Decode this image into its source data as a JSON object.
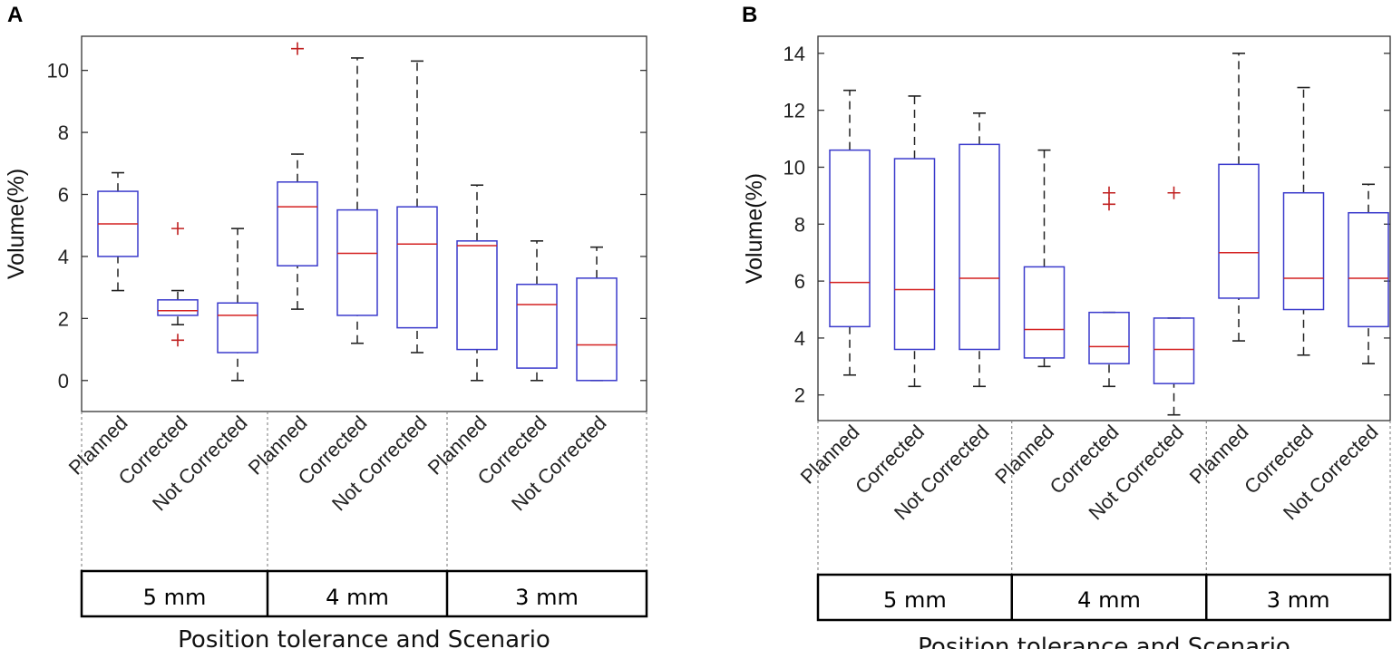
{
  "chart_data": [
    {
      "panel": "A",
      "type": "box",
      "ylabel": "Volume(%)",
      "xlabel": "Position tolerance and Scenario",
      "ylim": [
        -1,
        11.1
      ],
      "yticks": [
        0,
        2,
        4,
        6,
        8,
        10
      ],
      "groups": [
        "5 mm",
        "4 mm",
        "3 mm"
      ],
      "categories": [
        "Planned",
        "Corrected",
        "Not Corrected",
        "Planned",
        "Corrected",
        "Not Corrected",
        "Planned",
        "Corrected",
        "Not Corrected"
      ],
      "boxes": [
        {
          "min": 2.9,
          "q1": 4.0,
          "median": 5.05,
          "q3": 6.1,
          "max": 6.7,
          "outliers": []
        },
        {
          "min": 1.8,
          "q1": 2.1,
          "median": 2.25,
          "q3": 2.6,
          "max": 2.9,
          "outliers": [
            4.9,
            1.3
          ]
        },
        {
          "min": 0.0,
          "q1": 0.9,
          "median": 2.1,
          "q3": 2.5,
          "max": 4.9,
          "outliers": []
        },
        {
          "min": 2.3,
          "q1": 3.7,
          "median": 5.6,
          "q3": 6.4,
          "max": 7.3,
          "outliers": [
            10.7
          ]
        },
        {
          "min": 1.2,
          "q1": 2.1,
          "median": 4.1,
          "q3": 5.5,
          "max": 10.4,
          "outliers": []
        },
        {
          "min": 0.9,
          "q1": 1.7,
          "median": 4.4,
          "q3": 5.6,
          "max": 10.3,
          "outliers": []
        },
        {
          "min": 0.0,
          "q1": 1.0,
          "median": 4.35,
          "q3": 4.5,
          "max": 6.3,
          "outliers": []
        },
        {
          "min": 0.0,
          "q1": 0.4,
          "median": 2.45,
          "q3": 3.1,
          "max": 4.5,
          "outliers": []
        },
        {
          "min": 0.0,
          "q1": 0.0,
          "median": 1.15,
          "q3": 3.3,
          "max": 4.3,
          "outliers": []
        }
      ]
    },
    {
      "panel": "B",
      "type": "box",
      "ylabel": "Volume(%)",
      "xlabel": "Position tolerance and Scenario",
      "ylim": [
        1.1,
        14.6
      ],
      "yticks": [
        2,
        4,
        6,
        8,
        10,
        12,
        14
      ],
      "groups": [
        "5 mm",
        "4 mm",
        "3 mm"
      ],
      "categories": [
        "Planned",
        "Corrected",
        "Not Corrected",
        "Planned",
        "Corrected",
        "Not Corrected",
        "Planned",
        "Corrected",
        "Not Corrected"
      ],
      "boxes": [
        {
          "min": 2.7,
          "q1": 4.4,
          "median": 5.95,
          "q3": 10.6,
          "max": 12.7,
          "outliers": []
        },
        {
          "min": 2.3,
          "q1": 3.6,
          "median": 5.7,
          "q3": 10.3,
          "max": 12.5,
          "outliers": []
        },
        {
          "min": 2.3,
          "q1": 3.6,
          "median": 6.1,
          "q3": 10.8,
          "max": 11.9,
          "outliers": []
        },
        {
          "min": 3.0,
          "q1": 3.3,
          "median": 4.3,
          "q3": 6.5,
          "max": 10.6,
          "outliers": []
        },
        {
          "min": 2.3,
          "q1": 3.1,
          "median": 3.7,
          "q3": 4.9,
          "max": 4.9,
          "outliers": [
            9.1,
            8.7
          ]
        },
        {
          "min": 1.3,
          "q1": 2.4,
          "median": 3.6,
          "q3": 4.7,
          "max": 4.7,
          "outliers": [
            9.1
          ]
        },
        {
          "min": 3.9,
          "q1": 5.4,
          "median": 7.0,
          "q3": 10.1,
          "max": 14.0,
          "outliers": []
        },
        {
          "min": 3.4,
          "q1": 5.0,
          "median": 6.1,
          "q3": 9.1,
          "max": 12.8,
          "outliers": []
        },
        {
          "min": 3.1,
          "q1": 4.4,
          "median": 6.1,
          "q3": 8.4,
          "max": 9.4,
          "outliers": []
        }
      ]
    }
  ],
  "colors": {
    "box": "#3a3acc",
    "median": "#d42020",
    "outlier": "#c02020",
    "whisker": "#222222",
    "axis": "#333333"
  }
}
